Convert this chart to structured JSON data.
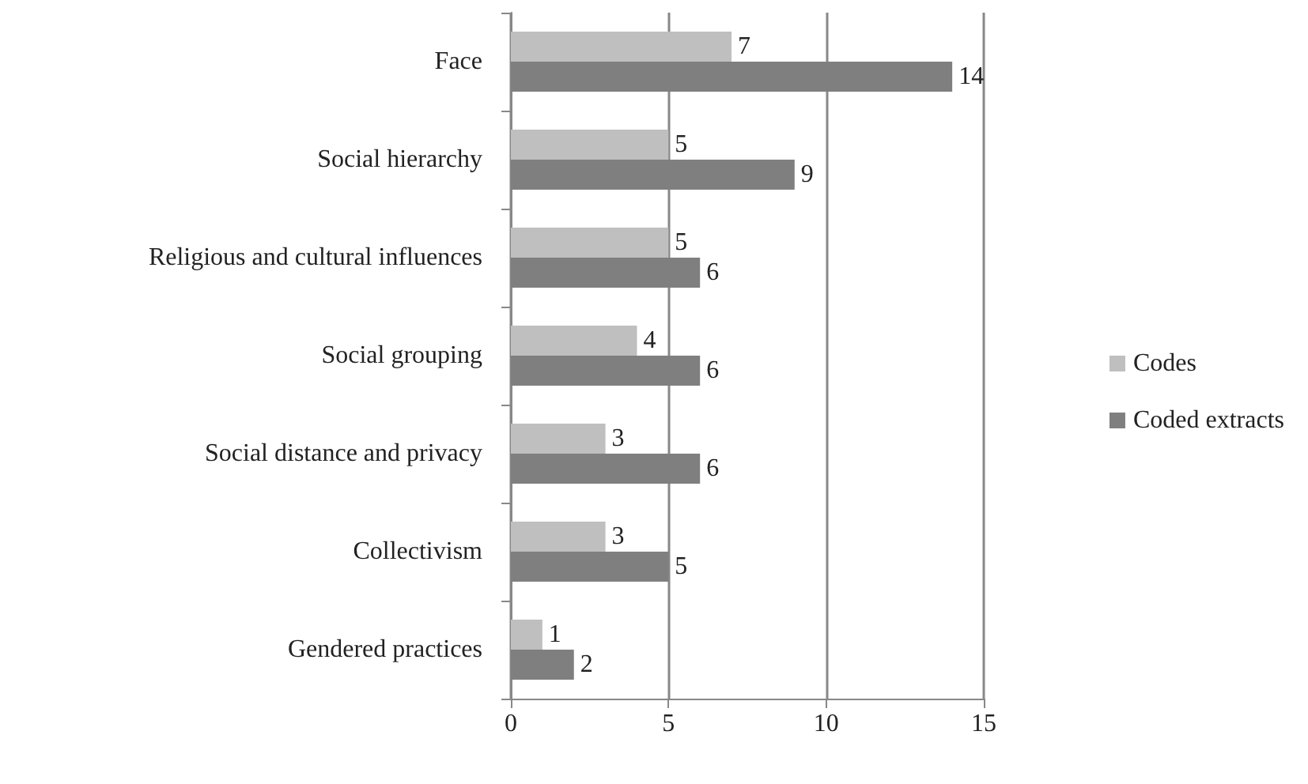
{
  "chart_data": {
    "type": "bar",
    "orientation": "horizontal",
    "categories": [
      "Face",
      "Social hierarchy",
      "Religious and cultural influences",
      "Social grouping",
      "Social distance and privacy",
      "Collectivism",
      "Gendered practices"
    ],
    "series": [
      {
        "name": "Codes",
        "color": "#bfbfbf",
        "values": [
          7,
          5,
          5,
          4,
          3,
          3,
          1
        ]
      },
      {
        "name": "Coded extracts",
        "color": "#7f7f7f",
        "values": [
          14,
          9,
          6,
          6,
          6,
          5,
          2
        ]
      }
    ],
    "xlim": [
      0,
      15
    ],
    "xticks": [
      0,
      5,
      10,
      15
    ],
    "grid": "x",
    "legend": "right",
    "data_labels": true
  }
}
